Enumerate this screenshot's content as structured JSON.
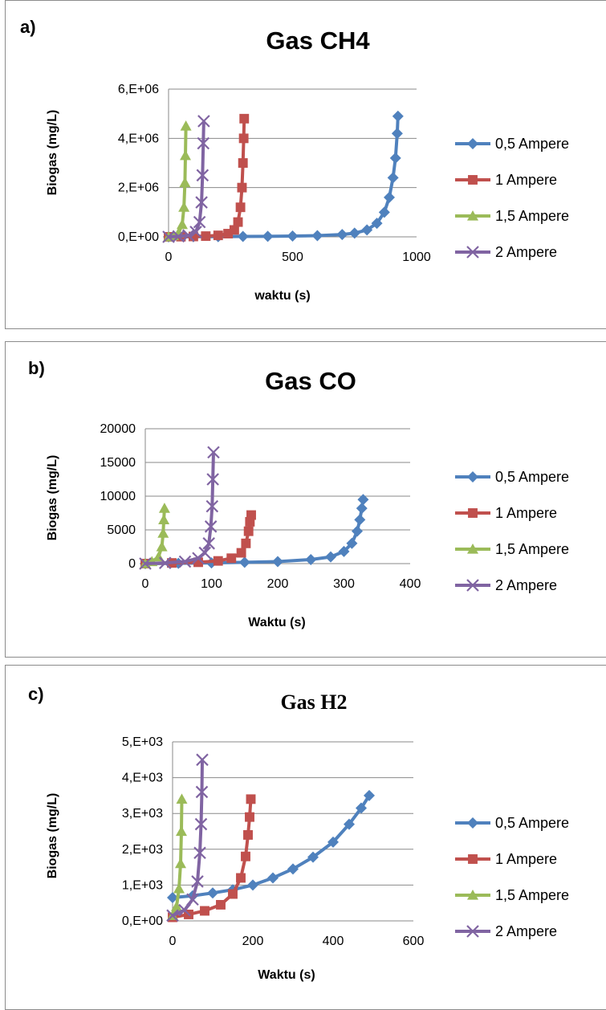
{
  "chart_data": [
    {
      "type": "line",
      "panel_label": "a)",
      "title": "Gas CH4",
      "xlabel": "waktu (s)",
      "ylabel": "Biogas (mg/L)",
      "xlim": [
        0,
        1000
      ],
      "ylim": [
        0,
        6000000
      ],
      "x_ticks": [
        0,
        500,
        1000
      ],
      "x_tick_labels": [
        "0",
        "500",
        "1000"
      ],
      "y_ticks": [
        0,
        2000000,
        4000000,
        6000000
      ],
      "y_tick_labels": [
        "0,E+00",
        "2,E+06",
        "4,E+06",
        "6,E+06"
      ],
      "grid": "horizontal",
      "legend": "right",
      "series": [
        {
          "name": "0,5 Ampere",
          "color": "#4f81bd",
          "marker": "diamond",
          "x": [
            0,
            100,
            200,
            300,
            400,
            500,
            600,
            700,
            750,
            800,
            840,
            870,
            890,
            905,
            915,
            922,
            925
          ],
          "y": [
            0,
            5000,
            10000,
            15000,
            22000,
            32000,
            50000,
            95000,
            150000,
            280000,
            550000,
            1000000,
            1600000,
            2400000,
            3200000,
            4200000,
            4900000
          ]
        },
        {
          "name": "1 Ampere",
          "color": "#c0504d",
          "marker": "square",
          "x": [
            0,
            50,
            100,
            150,
            200,
            240,
            265,
            280,
            290,
            296,
            300,
            303,
            305
          ],
          "y": [
            0,
            8000,
            15000,
            30000,
            60000,
            130000,
            280000,
            600000,
            1200000,
            2000000,
            3000000,
            4000000,
            4800000
          ]
        },
        {
          "name": "1,5 Ampere",
          "color": "#9bbb59",
          "marker": "triangle",
          "x": [
            0,
            20,
            40,
            55,
            62,
            66,
            68,
            70
          ],
          "y": [
            0,
            50000,
            150000,
            500000,
            1200000,
            2200000,
            3300000,
            4500000
          ]
        },
        {
          "name": "2 Ampere",
          "color": "#8064a2",
          "marker": "x",
          "x": [
            0,
            40,
            80,
            110,
            125,
            133,
            137,
            140,
            142
          ],
          "y": [
            0,
            20000,
            60000,
            200000,
            600000,
            1400000,
            2500000,
            3800000,
            4700000
          ]
        }
      ]
    },
    {
      "type": "line",
      "panel_label": "b)",
      "title": "Gas CO",
      "xlabel": "Waktu (s)",
      "ylabel": "Biogas (mg/L)",
      "xlim": [
        0,
        400
      ],
      "ylim": [
        0,
        20000
      ],
      "x_ticks": [
        0,
        100,
        200,
        300,
        400
      ],
      "x_tick_labels": [
        "0",
        "100",
        "200",
        "300",
        "400"
      ],
      "y_ticks": [
        0,
        5000,
        10000,
        15000,
        20000
      ],
      "y_tick_labels": [
        "0",
        "5000",
        "10000",
        "15000",
        "20000"
      ],
      "grid": "horizontal",
      "legend": "right",
      "series": [
        {
          "name": "0,5 Ampere",
          "color": "#4f81bd",
          "marker": "diamond",
          "x": [
            0,
            50,
            100,
            150,
            200,
            250,
            280,
            300,
            312,
            320,
            324,
            327,
            329
          ],
          "y": [
            0,
            50,
            100,
            200,
            300,
            600,
            1000,
            1800,
            3000,
            4800,
            6500,
            8200,
            9500
          ]
        },
        {
          "name": "1 Ampere",
          "color": "#c0504d",
          "marker": "square",
          "x": [
            0,
            40,
            80,
            110,
            130,
            145,
            152,
            156,
            158,
            160
          ],
          "y": [
            0,
            100,
            200,
            400,
            800,
            1600,
            3000,
            4800,
            6200,
            7200
          ]
        },
        {
          "name": "1,5 Ampere",
          "color": "#9bbb59",
          "marker": "triangle",
          "x": [
            0,
            10,
            20,
            25,
            27,
            28,
            29
          ],
          "y": [
            0,
            300,
            1000,
            2500,
            4500,
            6500,
            8200
          ]
        },
        {
          "name": "2 Ampere",
          "color": "#8064a2",
          "marker": "x",
          "x": [
            0,
            30,
            60,
            80,
            90,
            96,
            99,
            101,
            102,
            103
          ],
          "y": [
            0,
            100,
            300,
            800,
            1600,
            3000,
            5500,
            8500,
            12500,
            16500
          ]
        }
      ]
    },
    {
      "type": "line",
      "panel_label": "c)",
      "title": "Gas H2",
      "xlabel": "Waktu (s)",
      "ylabel": "Biogas (mg/L)",
      "xlim": [
        0,
        600
      ],
      "ylim": [
        0,
        5000
      ],
      "x_ticks": [
        0,
        200,
        400,
        600
      ],
      "x_tick_labels": [
        "0",
        "200",
        "400",
        "600"
      ],
      "y_ticks": [
        0,
        1000,
        2000,
        3000,
        4000,
        5000
      ],
      "y_tick_labels": [
        "0,E+00",
        "1,E+03",
        "2,E+03",
        "3,E+03",
        "4,E+03",
        "5,E+03"
      ],
      "grid": "horizontal",
      "legend": "right",
      "series": [
        {
          "name": "0,5 Ampere",
          "color": "#4f81bd",
          "marker": "diamond",
          "x": [
            0,
            50,
            100,
            150,
            200,
            250,
            300,
            350,
            400,
            440,
            470,
            490
          ],
          "y": [
            650,
            700,
            780,
            870,
            1000,
            1200,
            1450,
            1780,
            2200,
            2700,
            3150,
            3500
          ]
        },
        {
          "name": "1 Ampere",
          "color": "#c0504d",
          "marker": "square",
          "x": [
            0,
            40,
            80,
            120,
            150,
            170,
            182,
            188,
            192,
            195
          ],
          "y": [
            100,
            180,
            280,
            450,
            750,
            1200,
            1800,
            2400,
            2900,
            3400
          ]
        },
        {
          "name": "1,5 Ampere",
          "color": "#9bbb59",
          "marker": "triangle",
          "x": [
            0,
            10,
            16,
            20,
            22,
            23
          ],
          "y": [
            150,
            400,
            900,
            1600,
            2500,
            3400
          ]
        },
        {
          "name": "2 Ampere",
          "color": "#8064a2",
          "marker": "x",
          "x": [
            0,
            30,
            50,
            62,
            68,
            71,
            73,
            74
          ],
          "y": [
            150,
            300,
            600,
            1100,
            1900,
            2700,
            3600,
            4500
          ]
        }
      ]
    }
  ]
}
